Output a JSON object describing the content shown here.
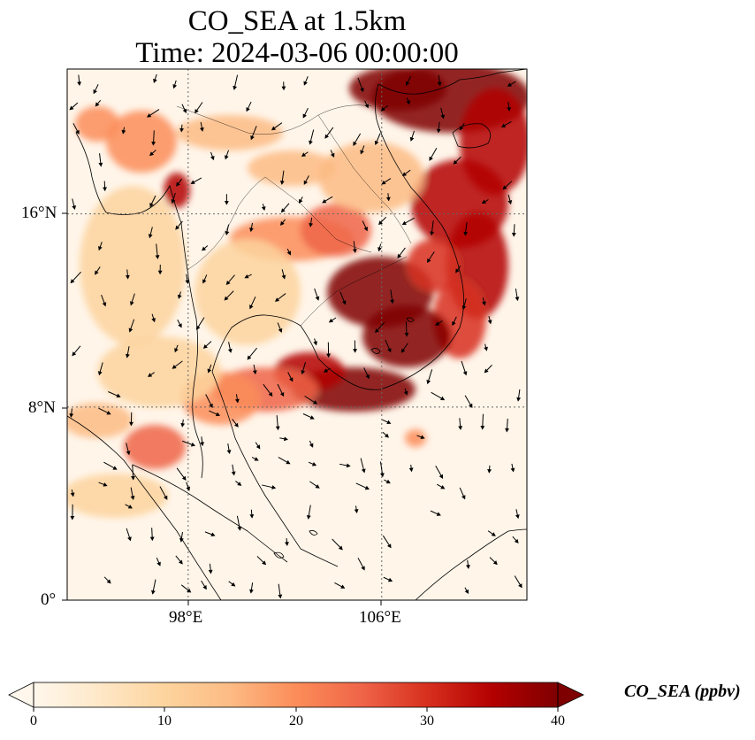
{
  "title_line1": "CO_SEA at 1.5km",
  "title_line2": "Time: 2024-03-06 00:00:00",
  "axes": {
    "lat_ticks": [
      "16°N",
      "8°N",
      "0°"
    ],
    "lon_ticks": [
      "98°E",
      "106°E"
    ],
    "lon_range": [
      93,
      112
    ],
    "lat_range": [
      0,
      22
    ],
    "gridlines": "dotted",
    "gridline_lons": [
      98,
      106
    ],
    "gridline_lats": [
      8,
      16
    ]
  },
  "colorbar": {
    "label": "CO_SEA (ppbv)",
    "ticks": [
      "0",
      "10",
      "20",
      "30",
      "40"
    ],
    "range": [
      0,
      40
    ],
    "extend": "both",
    "colormap": "OrRd",
    "colors": [
      "#fff7ec",
      "#fee8c8",
      "#fdd49e",
      "#fdbb84",
      "#fc8d59",
      "#ef6548",
      "#d7301f",
      "#b30000",
      "#7f0000"
    ]
  }
}
